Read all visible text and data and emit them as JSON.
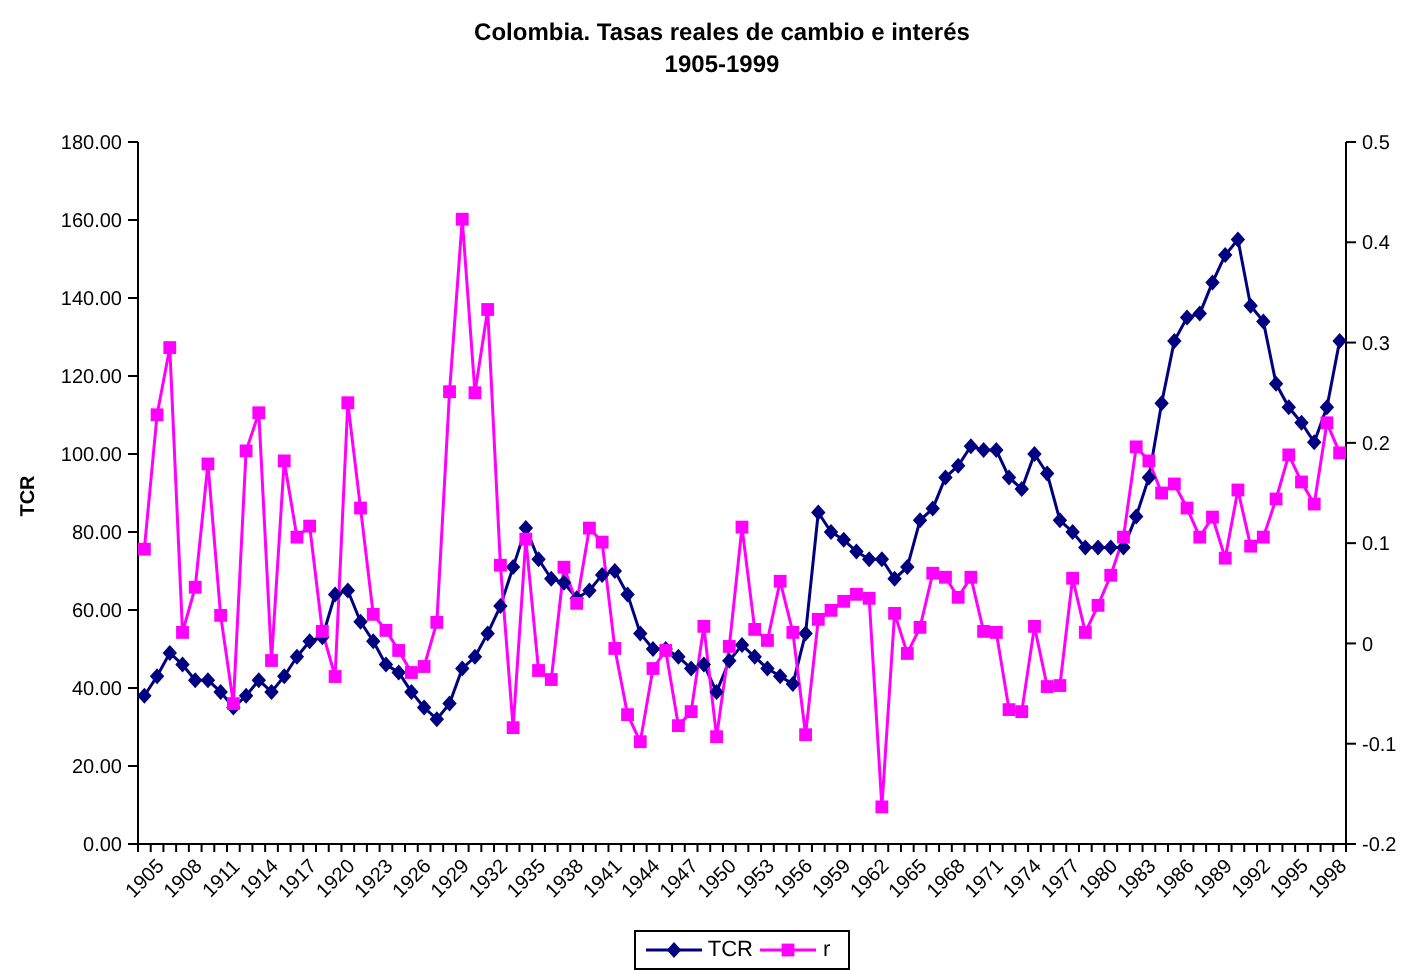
{
  "chart_data": {
    "type": "line",
    "title": "Colombia. Tasas reales de cambio e interés",
    "subtitle": "1905-1999",
    "ylabel": "TCR",
    "categories": [
      "1905",
      null,
      null,
      "1908",
      null,
      null,
      "1911",
      null,
      null,
      "1914",
      null,
      null,
      "1917",
      null,
      null,
      "1920",
      null,
      null,
      "1923",
      null,
      null,
      "1926",
      null,
      null,
      "1929",
      null,
      null,
      "1932",
      null,
      null,
      "1935",
      null,
      null,
      "1938",
      null,
      null,
      "1941",
      null,
      null,
      "1944",
      null,
      null,
      "1947",
      null,
      null,
      "1950",
      null,
      null,
      "1953",
      null,
      null,
      "1956",
      null,
      null,
      "1959",
      null,
      null,
      "1962",
      null,
      null,
      "1965",
      null,
      null,
      "1968",
      null,
      null,
      "1971",
      null,
      null,
      "1974",
      null,
      null,
      "1977",
      null,
      null,
      "1980",
      null,
      null,
      "1983",
      null,
      null,
      "1986",
      null,
      null,
      "1989",
      null,
      null,
      "1992",
      null,
      null,
      "1995",
      null,
      null,
      "1998",
      null
    ],
    "series": [
      {
        "name": "TCR",
        "color": "#000080",
        "marker": "diamond",
        "values": [
          38,
          43,
          49,
          46,
          42,
          42,
          39,
          35,
          38,
          42,
          39,
          43,
          48,
          52,
          53,
          64,
          65,
          57,
          52,
          46,
          44,
          39,
          35,
          32,
          36,
          45,
          48,
          54,
          61,
          71,
          81,
          73,
          68,
          67,
          63,
          65,
          69,
          70,
          64,
          54,
          50,
          50,
          48,
          45,
          46,
          39,
          47,
          51,
          48,
          45,
          43,
          41,
          54,
          85,
          80,
          78,
          75,
          73,
          73,
          68,
          71,
          83,
          86,
          94,
          97,
          102,
          101,
          101,
          94,
          91,
          100,
          95,
          83,
          80,
          76,
          76,
          76,
          76,
          84,
          94,
          113,
          129,
          135,
          136,
          144,
          151,
          155,
          138,
          134,
          118,
          112,
          108,
          103,
          112,
          129
        ]
      },
      {
        "name": "r",
        "color": "#ff00ff",
        "marker": "square",
        "axis": "y2",
        "values": [
          0.094,
          0.228,
          0.295,
          0.011,
          0.056,
          0.179,
          0.028,
          -0.06,
          0.192,
          0.23,
          -0.017,
          0.182,
          0.106,
          0.117,
          0.012,
          -0.033,
          0.24,
          0.135,
          0.029,
          0.013,
          -0.007,
          -0.029,
          -0.023,
          0.021,
          0.251,
          0.423,
          0.25,
          0.333,
          0.078,
          -0.084,
          0.104,
          -0.027,
          -0.036,
          0.076,
          0.04,
          0.115,
          0.101,
          -0.005,
          -0.071,
          -0.098,
          -0.025,
          -0.007,
          -0.082,
          -0.068,
          0.017,
          -0.093,
          -0.003,
          0.116,
          0.014,
          0.003,
          0.062,
          0.011,
          -0.091,
          0.024,
          0.033,
          0.042,
          0.049,
          0.045,
          -0.163,
          0.03,
          -0.01,
          0.016,
          0.07,
          0.066,
          0.046,
          0.066,
          0.012,
          0.011,
          -0.066,
          -0.068,
          0.017,
          -0.043,
          -0.042,
          0.065,
          0.011,
          0.038,
          0.068,
          0.106,
          0.196,
          0.182,
          0.15,
          0.159,
          0.135,
          0.106,
          0.126,
          0.085,
          0.153,
          0.097,
          0.106,
          0.144,
          0.188,
          0.161,
          0.139,
          0.22,
          0.19
        ]
      }
    ],
    "ylim": [
      0,
      180
    ],
    "yticks": [
      {
        "value": 0,
        "label": "0.00"
      },
      {
        "value": 20,
        "label": "20.00"
      },
      {
        "value": 40,
        "label": "40.00"
      },
      {
        "value": 60,
        "label": "60.00"
      },
      {
        "value": 80,
        "label": "80.00"
      },
      {
        "value": 100,
        "label": "100.00"
      },
      {
        "value": 120,
        "label": "120.00"
      },
      {
        "value": 140,
        "label": "140.00"
      },
      {
        "value": 160,
        "label": "160.00"
      },
      {
        "value": 180,
        "label": "180.00"
      }
    ],
    "y2lim": [
      -0.2,
      0.5
    ],
    "y2ticks": [
      -0.2,
      -0.1,
      0,
      0.1,
      0.2,
      0.3,
      0.4,
      0.5
    ],
    "legend": "bottom",
    "line_style": "solid"
  }
}
